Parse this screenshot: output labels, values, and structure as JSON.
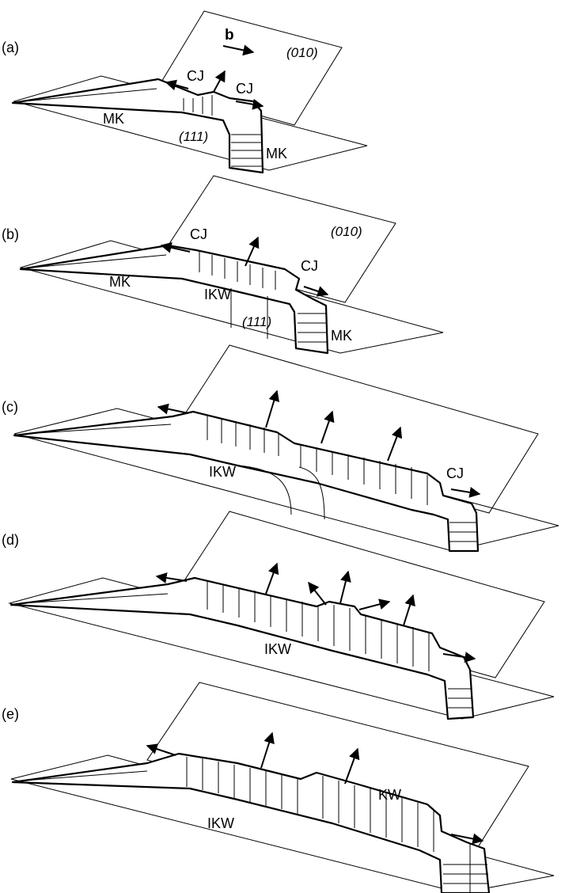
{
  "figure": {
    "panels": [
      {
        "id": "a",
        "label": "(a)",
        "texts": {
          "vector": "b",
          "plane": "(010)",
          "cj_left": "CJ",
          "cj_right": "CJ",
          "mk_left": "MK",
          "plane2": "(111)",
          "mk_right": "MK"
        }
      },
      {
        "id": "b",
        "label": "(b)",
        "texts": {
          "cj_left": "CJ",
          "plane": "(010)",
          "cj_right": "CJ",
          "mk_left": "MK",
          "ikw": "IKW",
          "plane2": "(111)",
          "mk_right": "MK"
        }
      },
      {
        "id": "c",
        "label": "(c)",
        "texts": {
          "ikw": "IKW",
          "cj": "CJ"
        }
      },
      {
        "id": "d",
        "label": "(d)",
        "texts": {
          "ikw": "IKW"
        }
      },
      {
        "id": "e",
        "label": "(e)",
        "texts": {
          "kw": "KW",
          "ikw": "IKW"
        }
      }
    ]
  }
}
